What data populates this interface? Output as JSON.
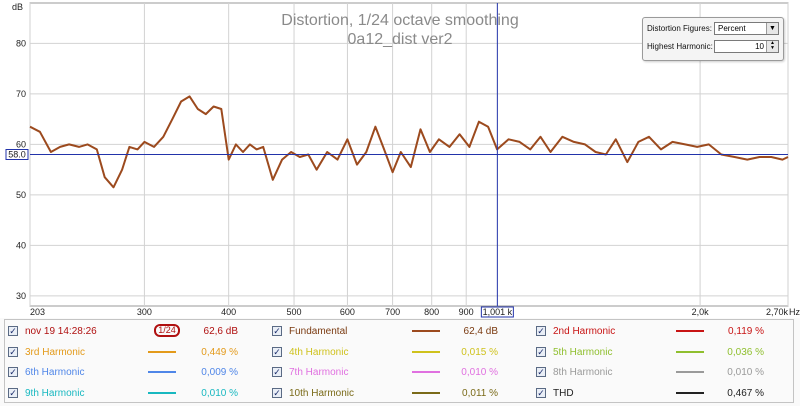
{
  "title": "Distortion, 1/24 octave smoothing",
  "subtitle": "0a12_dist ver2",
  "y_unit": "dB",
  "x_unit": "Hz",
  "cursor": {
    "y_readout": "58.0",
    "x_readout": "1,001 k",
    "y_value": 58.0,
    "x_value": 1001
  },
  "controls": {
    "distortion_label": "Distortion Figures:",
    "distortion_value": "Percent",
    "highest_label": "Highest Harmonic:",
    "highest_value": "10"
  },
  "legend": {
    "timestamp": "nov 19 14:28:26",
    "smoothing": "1/24",
    "cursor_level": "62,6 dB",
    "items": [
      {
        "name": "Fundamental",
        "value": "62,4 dB",
        "color": "#9c4a1e",
        "checked": true
      },
      {
        "name": "2nd Harmonic",
        "value": "0,119 %",
        "color": "#c81414",
        "checked": true
      },
      {
        "name": "3rd Harmonic",
        "value": "0,449 %",
        "color": "#e39a1a",
        "checked": true
      },
      {
        "name": "4th Harmonic",
        "value": "0,015 %",
        "color": "#cfc21c",
        "checked": true
      },
      {
        "name": "5th Harmonic",
        "value": "0,036 %",
        "color": "#8fbf2e",
        "checked": true
      },
      {
        "name": "6th Harmonic",
        "value": "0,009 %",
        "color": "#4f86e8",
        "checked": true
      },
      {
        "name": "7th Harmonic",
        "value": "0,010 %",
        "color": "#e070e0",
        "checked": true
      },
      {
        "name": "8th Harmonic",
        "value": "0,010 %",
        "color": "#9a9a9a",
        "checked": true
      },
      {
        "name": "9th Harmonic",
        "value": "0,010 %",
        "color": "#18b8c0",
        "checked": true
      },
      {
        "name": "10th Harmonic",
        "value": "0,011 %",
        "color": "#7a6a18",
        "checked": true
      },
      {
        "name": "THD",
        "value": "0,467 %",
        "color": "#222222",
        "checked": true
      }
    ]
  },
  "chart_data": {
    "type": "line",
    "title": "Distortion, 1/24 octave smoothing",
    "subtitle": "0a12_dist ver2",
    "ylabel": "dB",
    "xlabel": "Hz",
    "x_scale": "log",
    "xlim": [
      203,
      2700
    ],
    "ylim": [
      28,
      88
    ],
    "grid": true,
    "y_ticks": [
      30,
      40,
      50,
      60,
      70,
      80
    ],
    "x_ticks": [
      203,
      300,
      400,
      500,
      600,
      700,
      800,
      900,
      2000,
      2700
    ],
    "x_tick_labels": [
      "203",
      "300",
      "400",
      "500",
      "600",
      "700",
      "800",
      "900",
      "2,0k",
      "2,70k"
    ],
    "series": [
      {
        "name": "Fundamental",
        "color": "#9c4a1e",
        "x": [
          203,
          210,
          218,
          225,
          232,
          240,
          247,
          255,
          262,
          270,
          278,
          285,
          293,
          300,
          310,
          320,
          330,
          340,
          350,
          360,
          370,
          380,
          390,
          400,
          410,
          420,
          430,
          440,
          450,
          465,
          480,
          495,
          510,
          525,
          540,
          560,
          580,
          600,
          620,
          640,
          660,
          680,
          700,
          720,
          745,
          770,
          795,
          820,
          850,
          880,
          910,
          940,
          970,
          1000,
          1040,
          1080,
          1120,
          1160,
          1200,
          1250,
          1300,
          1350,
          1400,
          1450,
          1500,
          1560,
          1620,
          1680,
          1750,
          1820,
          1900,
          1980,
          2060,
          2150,
          2250,
          2350,
          2450,
          2550,
          2650,
          2700
        ],
        "y": [
          63.5,
          62.5,
          58.5,
          59.5,
          60.0,
          59.5,
          60.0,
          59.0,
          53.5,
          51.5,
          55.0,
          59.5,
          59.0,
          60.5,
          59.5,
          61.5,
          65.0,
          68.5,
          69.5,
          67.0,
          66.0,
          67.5,
          67.0,
          57.0,
          60.0,
          58.5,
          60.0,
          59.0,
          59.5,
          53.0,
          57.0,
          58.5,
          57.5,
          58.0,
          55.0,
          58.5,
          57.0,
          61.0,
          56.0,
          58.5,
          63.5,
          59.0,
          54.5,
          58.5,
          55.5,
          63.0,
          58.5,
          61.0,
          59.5,
          62.0,
          59.5,
          64.5,
          63.5,
          59.0,
          61.0,
          60.5,
          59.0,
          61.5,
          58.5,
          61.5,
          60.5,
          60.0,
          58.5,
          58.0,
          61.0,
          56.5,
          60.5,
          61.5,
          59.0,
          60.5,
          60.0,
          59.5,
          60.0,
          58.0,
          57.5,
          57.0,
          57.5,
          57.5,
          57.0,
          57.5
        ]
      }
    ]
  }
}
